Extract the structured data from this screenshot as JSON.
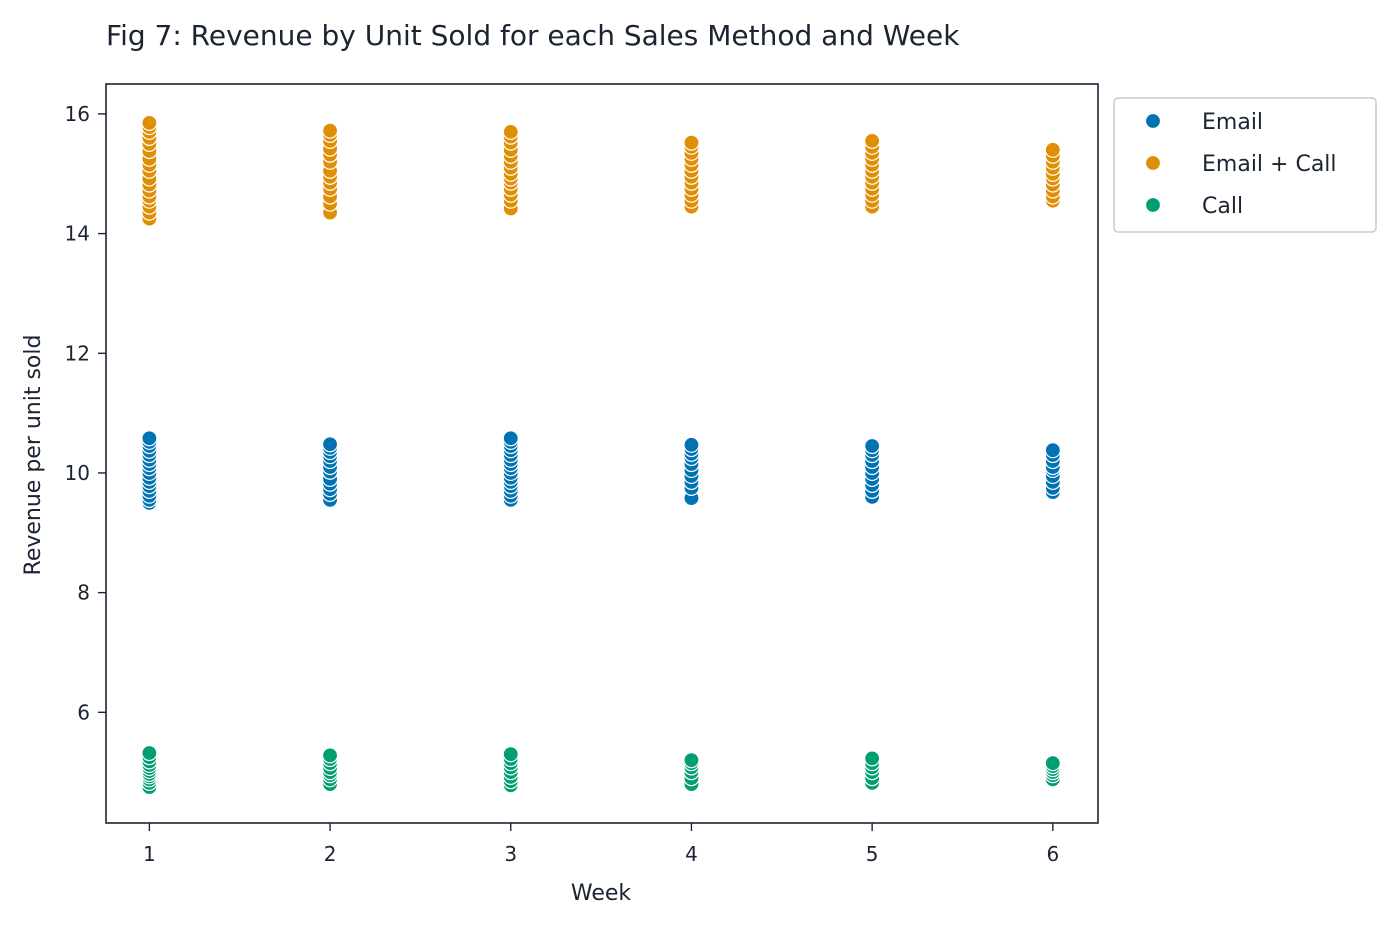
{
  "chart_data": {
    "type": "scatter",
    "title": "Fig 7: Revenue by Unit Sold for each Sales Method and Week",
    "xlabel": "Week",
    "ylabel": "Revenue per unit sold",
    "xlim": [
      0.76,
      6.25
    ],
    "ylim": [
      4.15,
      16.5
    ],
    "xticks": [
      1,
      2,
      3,
      4,
      5,
      6
    ],
    "yticks": [
      6,
      8,
      10,
      12,
      14,
      16
    ],
    "grid": false,
    "legend_position": "outside-top-right",
    "series": [
      {
        "name": "Email",
        "color": "#0173b2",
        "points": [
          {
            "x": 1,
            "values": [
              9.5,
              9.55,
              9.62,
              9.7,
              9.78,
              9.85,
              9.92,
              10.0,
              10.08,
              10.15,
              10.22,
              10.3,
              10.37,
              10.45,
              10.52,
              10.58
            ]
          },
          {
            "x": 2,
            "values": [
              9.55,
              9.65,
              9.73,
              9.82,
              9.9,
              10.02,
              10.1,
              10.2,
              10.28,
              10.35,
              10.42,
              10.48
            ]
          },
          {
            "x": 3,
            "values": [
              9.55,
              9.62,
              9.7,
              9.78,
              9.85,
              9.92,
              10.0,
              10.08,
              10.15,
              10.22,
              10.3,
              10.38,
              10.45,
              10.52,
              10.58
            ]
          },
          {
            "x": 4,
            "values": [
              9.58,
              9.75,
              9.85,
              9.95,
              10.05,
              10.15,
              10.25,
              10.32,
              10.4,
              10.47
            ]
          },
          {
            "x": 5,
            "values": [
              9.6,
              9.7,
              9.8,
              9.9,
              10.0,
              10.1,
              10.2,
              10.3,
              10.38,
              10.45
            ]
          },
          {
            "x": 6,
            "values": [
              9.68,
              9.75,
              9.85,
              9.95,
              10.05,
              10.1,
              10.2,
              10.3,
              10.38
            ]
          }
        ]
      },
      {
        "name": "Email + Call",
        "color": "#de8f05",
        "points": [
          {
            "x": 1,
            "values": [
              14.25,
              14.35,
              14.45,
              14.55,
              14.62,
              14.72,
              14.82,
              14.92,
              15.05,
              15.15,
              15.25,
              15.38,
              15.5,
              15.6,
              15.7,
              15.78,
              15.85
            ]
          },
          {
            "x": 2,
            "values": [
              14.35,
              14.5,
              14.62,
              14.75,
              14.85,
              14.95,
              15.05,
              15.2,
              15.32,
              15.42,
              15.55,
              15.65,
              15.72
            ]
          },
          {
            "x": 3,
            "values": [
              14.42,
              14.55,
              14.65,
              14.75,
              14.85,
              14.92,
              15.0,
              15.1,
              15.2,
              15.3,
              15.4,
              15.52,
              15.62,
              15.7
            ]
          },
          {
            "x": 4,
            "values": [
              14.45,
              14.55,
              14.65,
              14.75,
              14.85,
              14.95,
              15.05,
              15.15,
              15.25,
              15.35,
              15.45,
              15.52
            ]
          },
          {
            "x": 5,
            "values": [
              14.45,
              14.55,
              14.65,
              14.75,
              14.85,
              14.95,
              15.05,
              15.15,
              15.25,
              15.35,
              15.45,
              15.55
            ]
          },
          {
            "x": 6,
            "values": [
              14.55,
              14.62,
              14.72,
              14.82,
              14.92,
              15.0,
              15.1,
              15.2,
              15.3,
              15.4
            ]
          }
        ]
      },
      {
        "name": "Call",
        "color": "#029e73",
        "points": [
          {
            "x": 1,
            "values": [
              4.75,
              4.82,
              4.88,
              4.93,
              4.97,
              5.02,
              5.07,
              5.12,
              5.18,
              5.25,
              5.32
            ]
          },
          {
            "x": 2,
            "values": [
              4.8,
              4.88,
              4.95,
              5.0,
              5.07,
              5.15,
              5.22,
              5.28
            ]
          },
          {
            "x": 3,
            "values": [
              4.78,
              4.85,
              4.92,
              5.0,
              5.08,
              5.15,
              5.22,
              5.3
            ]
          },
          {
            "x": 4,
            "values": [
              4.8,
              4.9,
              5.0,
              5.08,
              5.15,
              5.2
            ]
          },
          {
            "x": 5,
            "values": [
              4.82,
              4.9,
              5.0,
              5.08,
              5.15,
              5.23
            ]
          },
          {
            "x": 6,
            "values": [
              4.88,
              4.95,
              5.0,
              5.05,
              5.1,
              5.15
            ]
          }
        ]
      }
    ]
  }
}
